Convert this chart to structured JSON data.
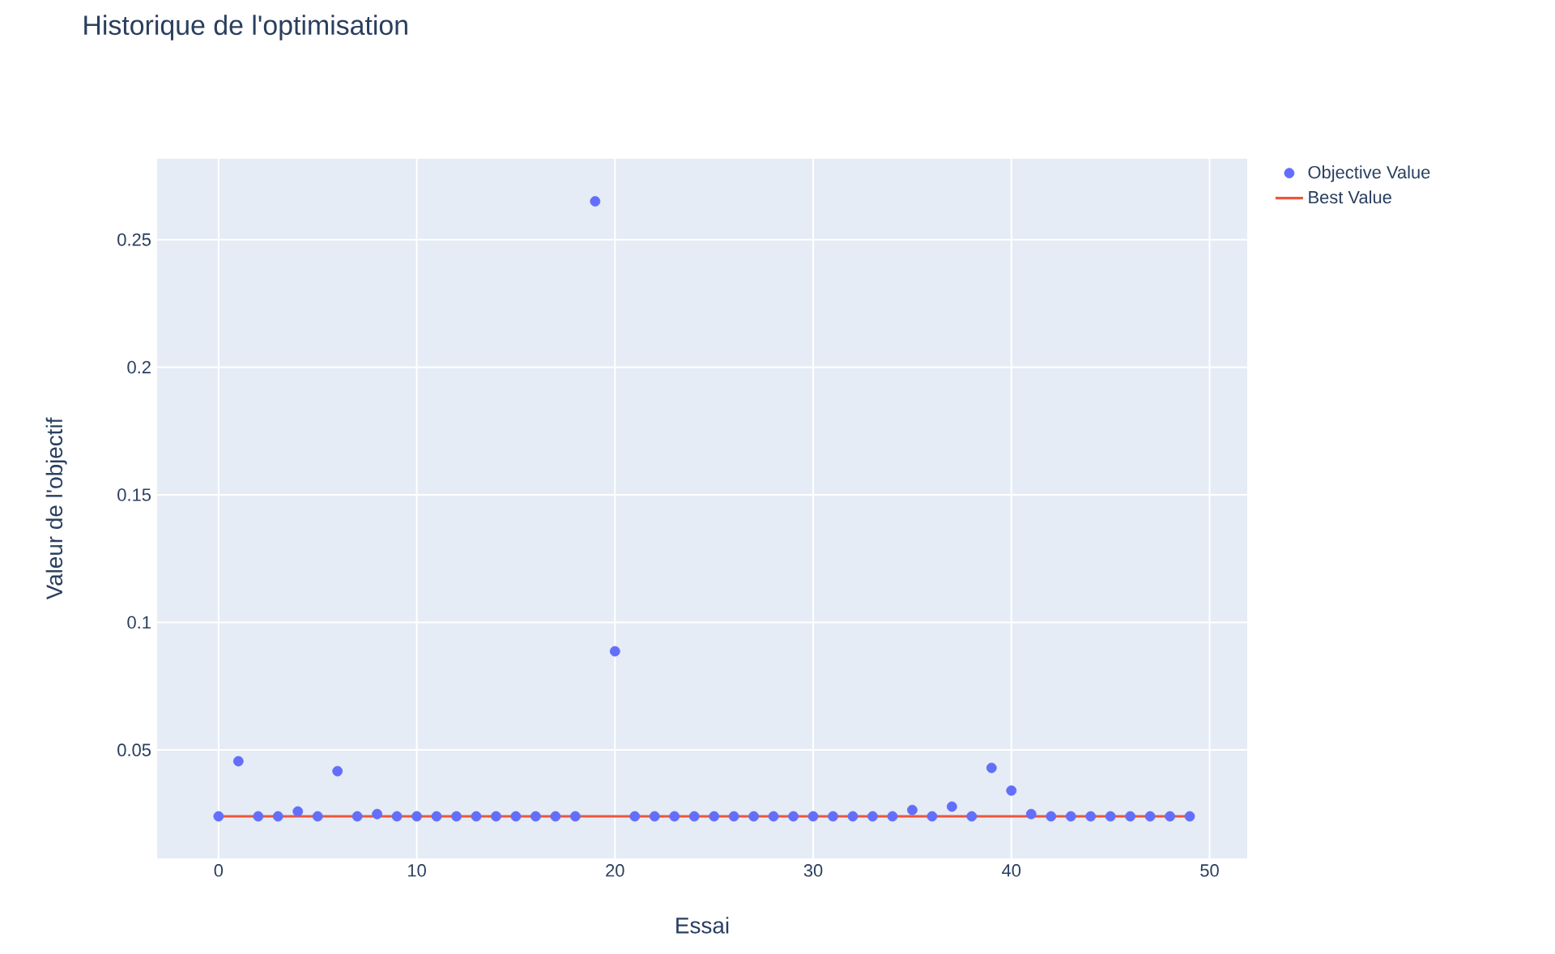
{
  "chart_data": {
    "type": "scatter",
    "title": "Historique de l'optimisation",
    "xlabel": "Essai",
    "ylabel": "Valeur de l'objectif",
    "xlim": [
      -3.1,
      51.9
    ],
    "ylim": [
      0.0075,
      0.2817
    ],
    "xticks": [
      0,
      10,
      20,
      30,
      40,
      50
    ],
    "yticks": [
      0.05,
      0.1,
      0.15,
      0.2,
      0.25
    ],
    "grid": true,
    "legend": "top right",
    "x": [
      0,
      1,
      2,
      3,
      4,
      5,
      6,
      7,
      8,
      9,
      10,
      11,
      12,
      13,
      14,
      15,
      16,
      17,
      18,
      19,
      20,
      21,
      22,
      23,
      24,
      25,
      26,
      27,
      28,
      29,
      30,
      31,
      32,
      33,
      34,
      35,
      36,
      37,
      38,
      39,
      40,
      41,
      42,
      43,
      44,
      45,
      46,
      47,
      48,
      49
    ],
    "series": [
      {
        "name": "Objective Value",
        "marker": "circle",
        "color": "#636efa",
        "values": [
          0.024,
          0.0456,
          0.024,
          0.024,
          0.0259,
          0.024,
          0.0417,
          0.024,
          0.0249,
          0.024,
          0.024,
          0.024,
          0.024,
          0.024,
          0.024,
          0.024,
          0.024,
          0.024,
          0.024,
          0.265,
          0.0887,
          0.024,
          0.024,
          0.024,
          0.024,
          0.024,
          0.024,
          0.024,
          0.024,
          0.024,
          0.024,
          0.024,
          0.024,
          0.024,
          0.024,
          0.0265,
          0.024,
          0.0278,
          0.024,
          0.043,
          0.0341,
          0.0249,
          0.024,
          0.024,
          0.024,
          0.024,
          0.024,
          0.024,
          0.024,
          0.024
        ]
      },
      {
        "name": "Best Value",
        "type": "line",
        "marker": "none",
        "color": "#ef553b",
        "values": [
          0.024,
          0.024,
          0.024,
          0.024,
          0.024,
          0.024,
          0.024,
          0.024,
          0.024,
          0.024,
          0.024,
          0.024,
          0.024,
          0.024,
          0.024,
          0.024,
          0.024,
          0.024,
          0.024,
          0.024,
          0.024,
          0.024,
          0.024,
          0.024,
          0.024,
          0.024,
          0.024,
          0.024,
          0.024,
          0.024,
          0.024,
          0.024,
          0.024,
          0.024,
          0.024,
          0.024,
          0.024,
          0.024,
          0.024,
          0.024,
          0.024,
          0.024,
          0.024,
          0.024,
          0.024,
          0.024,
          0.024,
          0.024,
          0.024,
          0.024
        ]
      }
    ]
  }
}
